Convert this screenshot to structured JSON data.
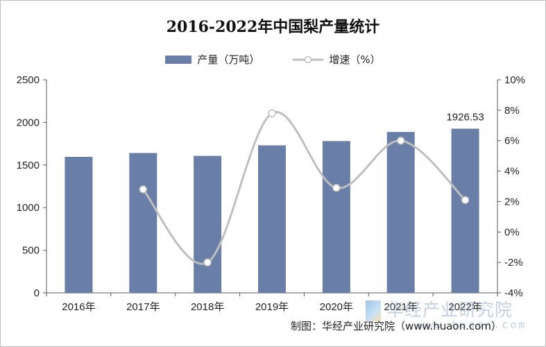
{
  "chart_data": {
    "type": "bar",
    "title": "2016-2022年中国梨产量统计",
    "categories": [
      "2016年",
      "2017年",
      "2018年",
      "2019年",
      "2020年",
      "2021年",
      "2022年"
    ],
    "series": [
      {
        "name": "产量（万吨）",
        "type": "bar",
        "axis": "left",
        "color": "#6a7fa8",
        "values": [
          1596,
          1641,
          1608,
          1731,
          1781,
          1888,
          1926.53
        ]
      },
      {
        "name": "增速（%）",
        "type": "line",
        "axis": "right",
        "color": "#bfbfbf",
        "values": [
          null,
          2.8,
          -2.0,
          7.8,
          2.9,
          6.0,
          2.1
        ]
      }
    ],
    "data_labels": [
      {
        "category": "2022年",
        "text": "1926.53"
      }
    ],
    "y_left": {
      "min": 0,
      "max": 2500,
      "ticks": [
        "0",
        "500",
        "1000",
        "1500",
        "2000",
        "2500"
      ]
    },
    "y_right": {
      "min": -4,
      "max": 10,
      "ticks": [
        "-4%",
        "-2%",
        "0%",
        "2%",
        "4%",
        "6%",
        "8%",
        "10%"
      ]
    },
    "grid": false,
    "legend_position": "top"
  },
  "source": "制图：华经产业研究院（www.huaon.com）",
  "watermark": {
    "text": "华经产业研究院",
    "url": "www.huaon.com"
  }
}
